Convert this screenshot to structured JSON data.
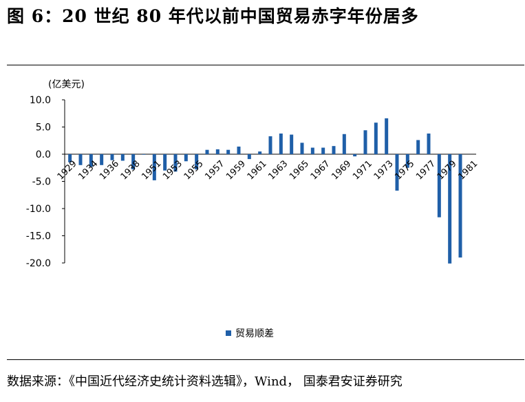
{
  "figure": {
    "title": "图 6：20 世纪 80 年代以前中国贸易赤字年份居多",
    "source": "数据来源：《中国近代经济史统计资料选辑》，Wind， 国泰君安证券研究",
    "unit": "(亿美元)"
  },
  "chart_data": {
    "type": "bar",
    "color": "#1f5fa8",
    "ylim": [
      -20,
      10
    ],
    "yticks": [
      10,
      5,
      0,
      -5,
      -10,
      -15,
      -20
    ],
    "ytick_labels": [
      "10.0",
      "5.0",
      "0.0",
      "-5.0",
      "-10.0",
      "-15.0",
      "-20.0"
    ],
    "categories": [
      "1929",
      "1933",
      "1934",
      "1935",
      "1936",
      "1937",
      "1938",
      "1950",
      "1951",
      "1952",
      "1953",
      "1954",
      "1955",
      "1956",
      "1957",
      "1958",
      "1959",
      "1960",
      "1961",
      "1962",
      "1963",
      "1964",
      "1965",
      "1966",
      "1967",
      "1968",
      "1969",
      "1970",
      "1971",
      "1972",
      "1973",
      "1974",
      "1975",
      "1976",
      "1977",
      "1978",
      "1979",
      "1980",
      "1981"
    ],
    "tick_labels": [
      "1929",
      "1934",
      "1936",
      "1938",
      "1951",
      "1953",
      "1955",
      "1957",
      "1959",
      "1961",
      "1963",
      "1965",
      "1967",
      "1969",
      "1971",
      "1973",
      "1975",
      "1977",
      "1979",
      "1981"
    ],
    "series": [
      {
        "name": "贸易顺差",
        "values": [
          -1.5,
          -2.0,
          -2.3,
          -2.0,
          -1.1,
          -1.2,
          -2.8,
          -0.1,
          -4.8,
          -3.0,
          -3.2,
          -1.3,
          -2.8,
          0.8,
          0.9,
          0.8,
          1.4,
          -0.9,
          0.5,
          3.3,
          3.8,
          3.6,
          2.1,
          1.2,
          1.2,
          1.5,
          3.7,
          -0.4,
          4.4,
          5.8,
          6.6,
          -6.7,
          -2.5,
          2.6,
          3.8,
          -11.6,
          -20.1,
          -19.0,
          0.0
        ]
      }
    ]
  }
}
